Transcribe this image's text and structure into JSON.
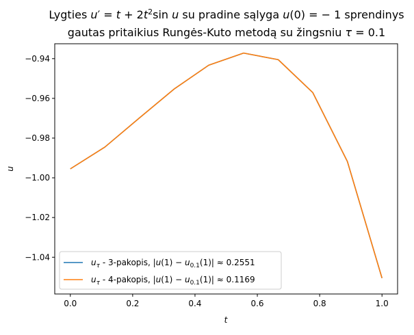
{
  "chart_data": {
    "type": "line",
    "title_line1": "Lygties u′ = t + 2t²sin u su pradine sąlyga u(0) = −1 sprendinys",
    "title_line2": "gautas pritaikius Rungės-Kuto metodą su žingsniu τ = 0.1",
    "xlabel": "t",
    "ylabel": "u",
    "xlim": [
      -0.05,
      1.05
    ],
    "ylim": [
      -1.0585,
      -0.9325
    ],
    "xticks": [
      0.0,
      0.2,
      0.4,
      0.6,
      0.8,
      1.0
    ],
    "xtick_labels": [
      "0.0",
      "0.2",
      "0.4",
      "0.6",
      "0.8",
      "1.0"
    ],
    "yticks": [
      -0.94,
      -0.96,
      -0.98,
      -1.0,
      -1.02,
      -1.04
    ],
    "ytick_labels": [
      "−0.94",
      "−0.96",
      "−0.98",
      "−1.00",
      "−1.02",
      "−1.04"
    ],
    "grid": false,
    "legend_position": "lower-left",
    "x": [
      0.0,
      0.111,
      0.222,
      0.333,
      0.444,
      0.556,
      0.667,
      0.778,
      0.889,
      1.0
    ],
    "series": [
      {
        "name": "u_τ - 3-pakopis, |u(1) − u_0.1(1)| ≈ 0.2551",
        "color": "#1f77b4",
        "values": [
          -0.9955,
          -0.9845,
          -0.9698,
          -0.9553,
          -0.9433,
          -0.9372,
          -0.9405,
          -0.9571,
          -0.9918,
          -1.0505
        ]
      },
      {
        "name": "u_τ - 4-pakopis, |u(1) − u_0.1(1)| ≈ 0.1169",
        "color": "#ff7f0e",
        "values": [
          -0.9955,
          -0.9845,
          -0.9698,
          -0.9553,
          -0.9433,
          -0.9372,
          -0.9405,
          -0.9571,
          -0.9918,
          -1.0505
        ]
      }
    ]
  }
}
